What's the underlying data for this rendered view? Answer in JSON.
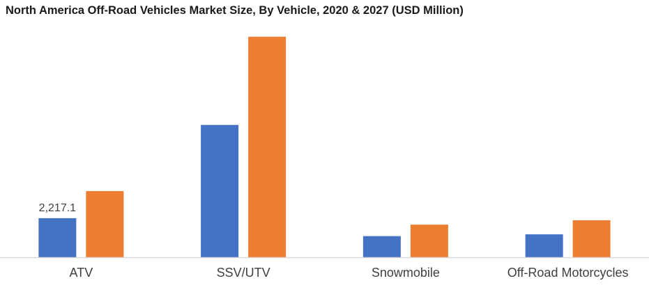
{
  "chart_data": {
    "type": "bar",
    "title": "North America Off-Road Vehicles Market Size, By Vehicle, 2020 & 2027 (USD Million)",
    "categories": [
      "ATV",
      "SSV/UTV",
      "Snowmobile",
      "Off-Road Motorcycles"
    ],
    "series": [
      {
        "values": [
          2217.1,
          7500,
          1200,
          1300
        ],
        "color": "#4472c4"
      },
      {
        "values": [
          3750,
          12500,
          1850,
          2100
        ],
        "color": "#ed7d31"
      }
    ],
    "data_labels": [
      {
        "series": 0,
        "category": 0,
        "text": "2,217.1"
      }
    ],
    "ylim": [
      0,
      13000
    ],
    "grid": false,
    "legend": "none"
  }
}
